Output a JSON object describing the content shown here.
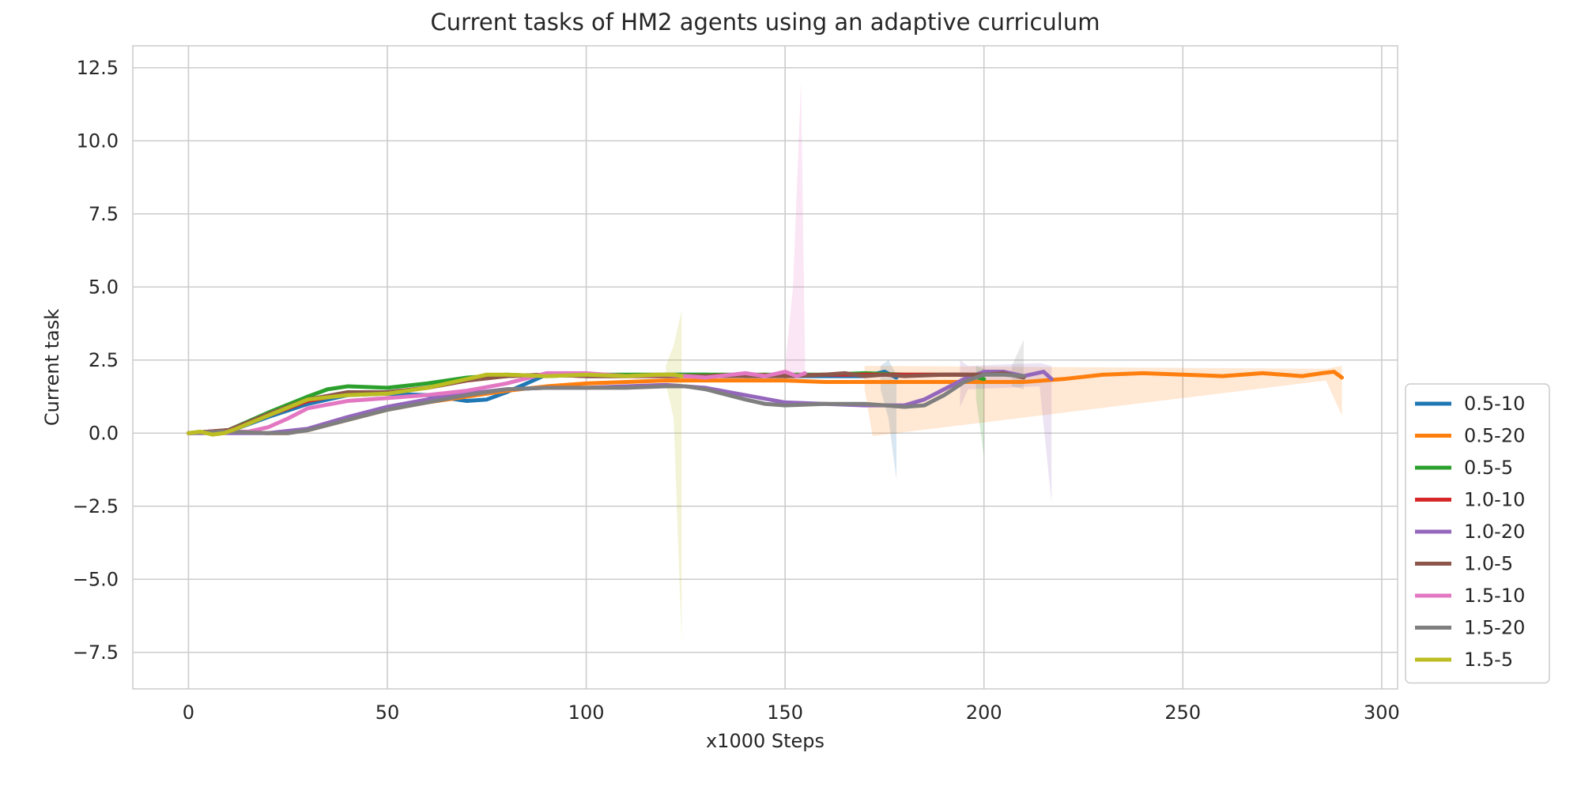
{
  "chart_data": {
    "type": "line",
    "title": "Current tasks of HM2 agents using an adaptive curriculum",
    "xlabel": "x1000 Steps",
    "ylabel": "Current task",
    "xlim": [
      -14,
      304
    ],
    "ylim": [
      -8.75,
      13.25
    ],
    "xticks": [
      0,
      50,
      100,
      150,
      200,
      250,
      300
    ],
    "yticks": [
      -7.5,
      -5.0,
      -2.5,
      0.0,
      2.5,
      5.0,
      7.5,
      10.0,
      12.5
    ],
    "xtick_labels": [
      "0",
      "50",
      "100",
      "150",
      "200",
      "250",
      "300"
    ],
    "ytick_labels": [
      "−7.5",
      "−5.0",
      "−2.5",
      "0.0",
      "2.5",
      "5.0",
      "7.5",
      "10.0",
      "12.5"
    ],
    "grid": true,
    "legend_position": "outside right, bottom",
    "series": [
      {
        "name": "0.5-10",
        "color": "#1f77b4",
        "x": [
          0,
          10,
          20,
          30,
          40,
          50,
          60,
          65,
          70,
          75,
          80,
          85,
          90,
          95,
          100,
          110,
          120,
          130,
          140,
          150,
          160,
          170,
          175,
          178
        ],
        "y": [
          0,
          0.05,
          0.55,
          1.0,
          1.3,
          1.35,
          1.3,
          1.2,
          1.1,
          1.15,
          1.4,
          1.7,
          2.0,
          2.05,
          1.95,
          1.95,
          2.0,
          2.0,
          1.95,
          1.95,
          1.95,
          1.95,
          2.1,
          1.9
        ],
        "band": [
          {
            "x": 174,
            "lo": 1.5,
            "hi": 2.3
          },
          {
            "x": 176,
            "lo": 0.5,
            "hi": 2.5
          },
          {
            "x": 178,
            "lo": -1.6,
            "hi": 2.0
          }
        ]
      },
      {
        "name": "0.5-20",
        "color": "#ff7f0e",
        "x": [
          0,
          10,
          20,
          25,
          30,
          40,
          50,
          60,
          70,
          80,
          90,
          100,
          110,
          120,
          130,
          140,
          150,
          160,
          170,
          180,
          190,
          200,
          210,
          220,
          230,
          240,
          250,
          260,
          270,
          280,
          285,
          288,
          290
        ],
        "y": [
          0,
          0.05,
          0,
          0,
          0.1,
          0.45,
          0.8,
          1.05,
          1.25,
          1.45,
          1.6,
          1.7,
          1.75,
          1.8,
          1.8,
          1.8,
          1.8,
          1.75,
          1.75,
          1.75,
          1.75,
          1.75,
          1.75,
          1.85,
          2.0,
          2.05,
          2.0,
          1.95,
          2.05,
          1.95,
          2.05,
          2.1,
          1.9
        ],
        "band": [
          {
            "x": 170,
            "lo": 1.5,
            "hi": 2.3
          },
          {
            "x": 172,
            "lo": -0.1,
            "hi": 2.3
          },
          {
            "x": 286,
            "lo": 1.8,
            "hi": 2.2
          },
          {
            "x": 290,
            "lo": 0.6,
            "hi": 2.3
          }
        ]
      },
      {
        "name": "0.5-5",
        "color": "#2ca02c",
        "x": [
          0,
          10,
          20,
          30,
          35,
          40,
          50,
          60,
          70,
          80,
          90,
          100,
          110,
          120,
          130,
          140,
          150,
          160,
          170,
          180,
          190,
          195,
          200
        ],
        "y": [
          0,
          0.1,
          0.7,
          1.25,
          1.5,
          1.6,
          1.55,
          1.7,
          1.9,
          2.0,
          1.95,
          2.0,
          2.0,
          2.0,
          2.0,
          2.0,
          2.0,
          2.0,
          2.05,
          2.0,
          2.0,
          2.0,
          1.85
        ],
        "band": [
          {
            "x": 198,
            "lo": 1.2,
            "hi": 2.3
          },
          {
            "x": 200,
            "lo": -0.8,
            "hi": 2.2
          }
        ]
      },
      {
        "name": "1.0-10",
        "color": "#d62728",
        "x": [
          0,
          10,
          20,
          30,
          40,
          50,
          60,
          70,
          80,
          90,
          100,
          110,
          120,
          130,
          140,
          150,
          160,
          170,
          180,
          190,
          200
        ],
        "y": [
          0,
          0.1,
          0.6,
          1.1,
          1.35,
          1.4,
          1.55,
          1.8,
          1.95,
          2.0,
          1.95,
          1.95,
          1.95,
          1.95,
          2.0,
          1.95,
          2.0,
          2.0,
          2.0,
          2.0,
          2.0
        ],
        "band": []
      },
      {
        "name": "1.0-20",
        "color": "#9467bd",
        "x": [
          0,
          10,
          20,
          30,
          40,
          50,
          60,
          70,
          80,
          90,
          100,
          110,
          120,
          130,
          140,
          150,
          160,
          170,
          180,
          185,
          190,
          195,
          200,
          205,
          210,
          215,
          217
        ],
        "y": [
          0,
          0,
          0,
          0.15,
          0.55,
          0.9,
          1.15,
          1.35,
          1.5,
          1.55,
          1.55,
          1.6,
          1.65,
          1.55,
          1.3,
          1.05,
          1.0,
          0.95,
          0.95,
          1.15,
          1.5,
          1.85,
          2.1,
          2.1,
          1.95,
          2.1,
          1.85
        ],
        "band": [
          {
            "x": 194,
            "lo": 0.9,
            "hi": 2.5
          },
          {
            "x": 196,
            "lo": 1.5,
            "hi": 2.3
          },
          {
            "x": 214,
            "lo": 1.6,
            "hi": 2.4
          },
          {
            "x": 217,
            "lo": -2.4,
            "hi": 2.3
          }
        ]
      },
      {
        "name": "1.0-5",
        "color": "#8c564b",
        "x": [
          0,
          10,
          20,
          30,
          40,
          50,
          60,
          70,
          80,
          90,
          100,
          110,
          120,
          130,
          140,
          150,
          160,
          165,
          170,
          175,
          180,
          190,
          200,
          205,
          210
        ],
        "y": [
          0,
          0.1,
          0.65,
          1.15,
          1.4,
          1.4,
          1.55,
          1.8,
          1.95,
          2.0,
          1.95,
          1.95,
          1.95,
          1.95,
          1.95,
          1.95,
          2.0,
          2.05,
          1.95,
          2.0,
          1.95,
          2.0,
          2.0,
          2.05,
          1.9
        ],
        "band": []
      },
      {
        "name": "1.5-10",
        "color": "#e377c2",
        "x": [
          0,
          10,
          15,
          20,
          25,
          30,
          40,
          50,
          60,
          70,
          80,
          90,
          100,
          110,
          120,
          130,
          140,
          145,
          150,
          153,
          155
        ],
        "y": [
          0,
          0.05,
          0.05,
          0.2,
          0.5,
          0.85,
          1.1,
          1.2,
          1.3,
          1.45,
          1.7,
          2.05,
          2.05,
          1.95,
          2.0,
          1.9,
          2.05,
          1.95,
          2.1,
          1.95,
          2.05
        ],
        "band": [
          {
            "x": 150,
            "lo": 1.8,
            "hi": 2.3
          },
          {
            "x": 152,
            "lo": 1.8,
            "hi": 5.0
          },
          {
            "x": 154,
            "lo": 1.9,
            "hi": 12.0
          },
          {
            "x": 155,
            "lo": 1.9,
            "hi": 2.6
          }
        ]
      },
      {
        "name": "1.5-20",
        "color": "#7f7f7f",
        "x": [
          0,
          10,
          20,
          25,
          30,
          40,
          50,
          60,
          70,
          80,
          90,
          100,
          110,
          120,
          125,
          130,
          140,
          145,
          150,
          160,
          170,
          180,
          185,
          190,
          195,
          200,
          205,
          210
        ],
        "y": [
          0,
          0.05,
          0,
          0,
          0.1,
          0.45,
          0.8,
          1.05,
          1.3,
          1.5,
          1.55,
          1.55,
          1.55,
          1.6,
          1.6,
          1.5,
          1.15,
          1.0,
          0.95,
          1.0,
          1.0,
          0.9,
          0.95,
          1.3,
          1.75,
          2.0,
          2.0,
          1.95
        ],
        "band": [
          {
            "x": 207,
            "lo": 1.6,
            "hi": 2.3
          },
          {
            "x": 210,
            "lo": 1.5,
            "hi": 3.2
          }
        ]
      },
      {
        "name": "1.5-5",
        "color": "#bcbd22",
        "x": [
          0,
          3,
          6,
          9,
          12,
          20,
          30,
          40,
          50,
          60,
          70,
          75,
          80,
          90,
          100,
          110,
          118,
          122,
          124
        ],
        "y": [
          0,
          0.05,
          -0.05,
          0.0,
          0.15,
          0.6,
          1.15,
          1.3,
          1.35,
          1.55,
          1.85,
          2.0,
          2.0,
          1.95,
          2.0,
          1.95,
          2.0,
          2.0,
          1.95
        ],
        "band": [
          {
            "x": 120,
            "lo": 1.7,
            "hi": 2.3
          },
          {
            "x": 122,
            "lo": 0.5,
            "hi": 3.0
          },
          {
            "x": 124,
            "lo": -7.2,
            "hi": 4.2
          }
        ]
      }
    ]
  }
}
